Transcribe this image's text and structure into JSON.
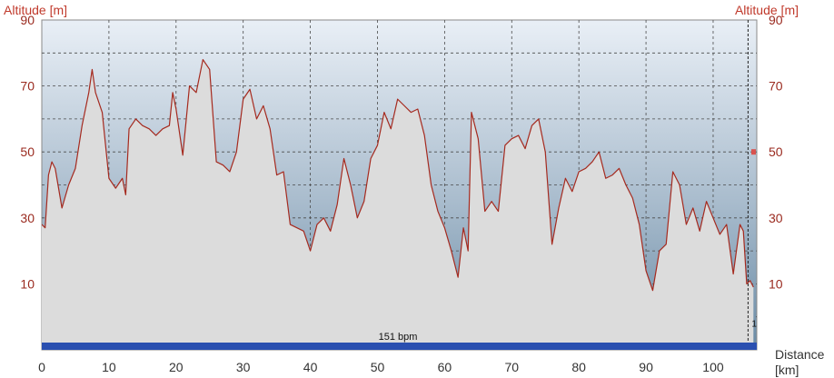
{
  "chart_data": {
    "type": "area",
    "ylabel_left": "Altitude [m]",
    "ylabel_right": "Altitude [m]",
    "xlabel_line1": "Distance",
    "xlabel_line2": "[km]",
    "ylim": [
      -10,
      90
    ],
    "xlim": [
      0,
      106.5
    ],
    "y_ticks": [
      10,
      30,
      50,
      70,
      90
    ],
    "x_ticks": [
      0,
      10,
      20,
      30,
      40,
      50,
      60,
      70,
      80,
      90,
      100
    ],
    "grid": true,
    "heart_rate_label": "151 bpm",
    "marker_label": "1",
    "marker_x": 105.2,
    "colors": {
      "line": "#a52a1f",
      "fill": "#dcdcdc",
      "sky_top": "#e8eef5",
      "sky_bottom": "#6f8fa8",
      "hr_bar": "#2a4fb0",
      "axis_text": "#c0392b"
    },
    "x": [
      0,
      0.5,
      1,
      1.5,
      2,
      3,
      4,
      5,
      6,
      7,
      7.5,
      8,
      9,
      10,
      11,
      12,
      12.5,
      13,
      14,
      15,
      16,
      17,
      18,
      19,
      19.5,
      20,
      21,
      22,
      23,
      24,
      25,
      26,
      27,
      28,
      29,
      30,
      31,
      32,
      33,
      34,
      35,
      36,
      37,
      38,
      39,
      40,
      41,
      42,
      43,
      44,
      45,
      46,
      47,
      48,
      49,
      50,
      51,
      52,
      53,
      54,
      55,
      56,
      57,
      58,
      59,
      60,
      61,
      62,
      62.8,
      63.5,
      64,
      65,
      66,
      67,
      68,
      69,
      70,
      71,
      72,
      73,
      74,
      75,
      76,
      77,
      78,
      79,
      80,
      81,
      82,
      83,
      84,
      85,
      86,
      87,
      88,
      89,
      90,
      91,
      92,
      93,
      94,
      95,
      96,
      97,
      98,
      99,
      100,
      101,
      102,
      103,
      104,
      104.5,
      105,
      105.5,
      106
    ],
    "y": [
      28,
      27,
      43,
      47,
      45,
      33,
      40,
      45,
      58,
      68,
      75,
      68,
      62,
      42,
      39,
      42,
      37,
      57,
      60,
      58,
      57,
      55,
      57,
      58,
      68,
      63,
      49,
      70,
      68,
      78,
      75,
      47,
      46,
      44,
      50,
      66,
      69,
      60,
      64,
      57,
      43,
      44,
      28,
      27,
      26,
      20,
      28,
      30,
      26,
      34,
      48,
      40,
      30,
      35,
      48,
      52,
      62,
      57,
      66,
      64,
      62,
      63,
      55,
      40,
      32,
      27,
      20,
      12,
      27,
      20,
      62,
      54,
      32,
      35,
      32,
      52,
      54,
      55,
      51,
      58,
      60,
      50,
      22,
      33,
      42,
      38,
      44,
      45,
      47,
      50,
      42,
      43,
      45,
      40,
      36,
      28,
      14,
      8,
      20,
      22,
      44,
      40,
      28,
      33,
      26,
      35,
      30,
      25,
      28,
      13,
      28,
      26,
      10,
      11,
      9
    ]
  }
}
